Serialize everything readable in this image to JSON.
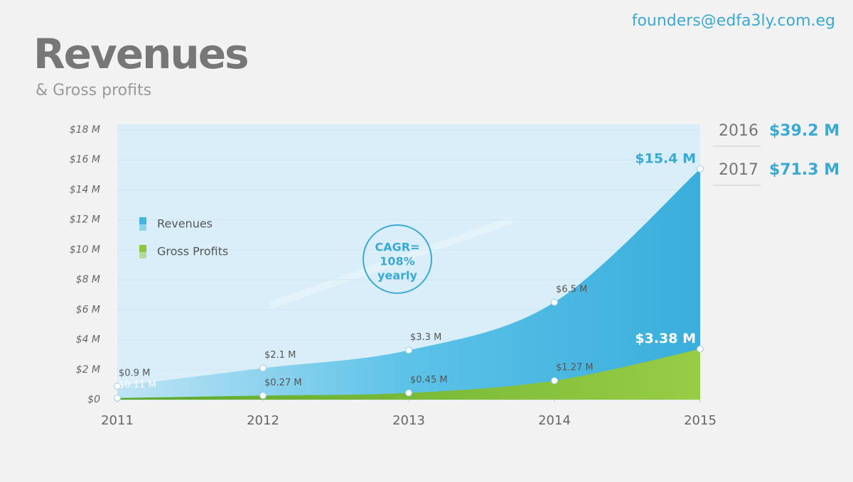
{
  "contact": "founders@edfa3ly.com.eg",
  "chart_data": {
    "type": "area",
    "title": "Revenues",
    "subtitle": "& Gross profits",
    "x": [
      2011,
      2012,
      2013,
      2014,
      2015
    ],
    "xlim": [
      2011,
      2015
    ],
    "xticks": [
      2011,
      2012,
      2013,
      2014,
      2015
    ],
    "ylim": [
      0,
      18
    ],
    "yticks": [
      {
        "value": 0,
        "label": "$0"
      },
      {
        "value": 2,
        "label": "$2 M"
      },
      {
        "value": 4,
        "label": "$4 M"
      },
      {
        "value": 6,
        "label": "$6 M"
      },
      {
        "value": 8,
        "label": "$8 M"
      },
      {
        "value": 10,
        "label": "$10 M"
      },
      {
        "value": 12,
        "label": "$12 M"
      },
      {
        "value": 14,
        "label": "$14 M"
      },
      {
        "value": 16,
        "label": "$16 M"
      },
      {
        "value": 18,
        "label": "$18 M"
      }
    ],
    "series": [
      {
        "name": "Revenues",
        "color": "#45b5e0",
        "values": [
          0.9,
          2.1,
          3.3,
          6.5,
          15.4
        ],
        "value_labels": [
          "$0.9 M",
          "$2.1 M",
          "$3.3 M",
          "$6.5 M",
          "$15.4 M"
        ]
      },
      {
        "name": "Gross Profits",
        "color": "#8cc63f",
        "values": [
          0.11,
          0.27,
          0.45,
          1.27,
          3.38
        ],
        "value_labels": [
          "$0.11 M",
          "$0.27 M",
          "$0.45 M",
          "$1.27 M",
          "$3.38 M"
        ]
      }
    ],
    "annotation": [
      "CAGR=",
      "108%",
      "yearly"
    ],
    "projections": [
      {
        "year": "2016",
        "value": "$39.2 M"
      },
      {
        "year": "2017",
        "value": "$71.3 M"
      }
    ]
  }
}
